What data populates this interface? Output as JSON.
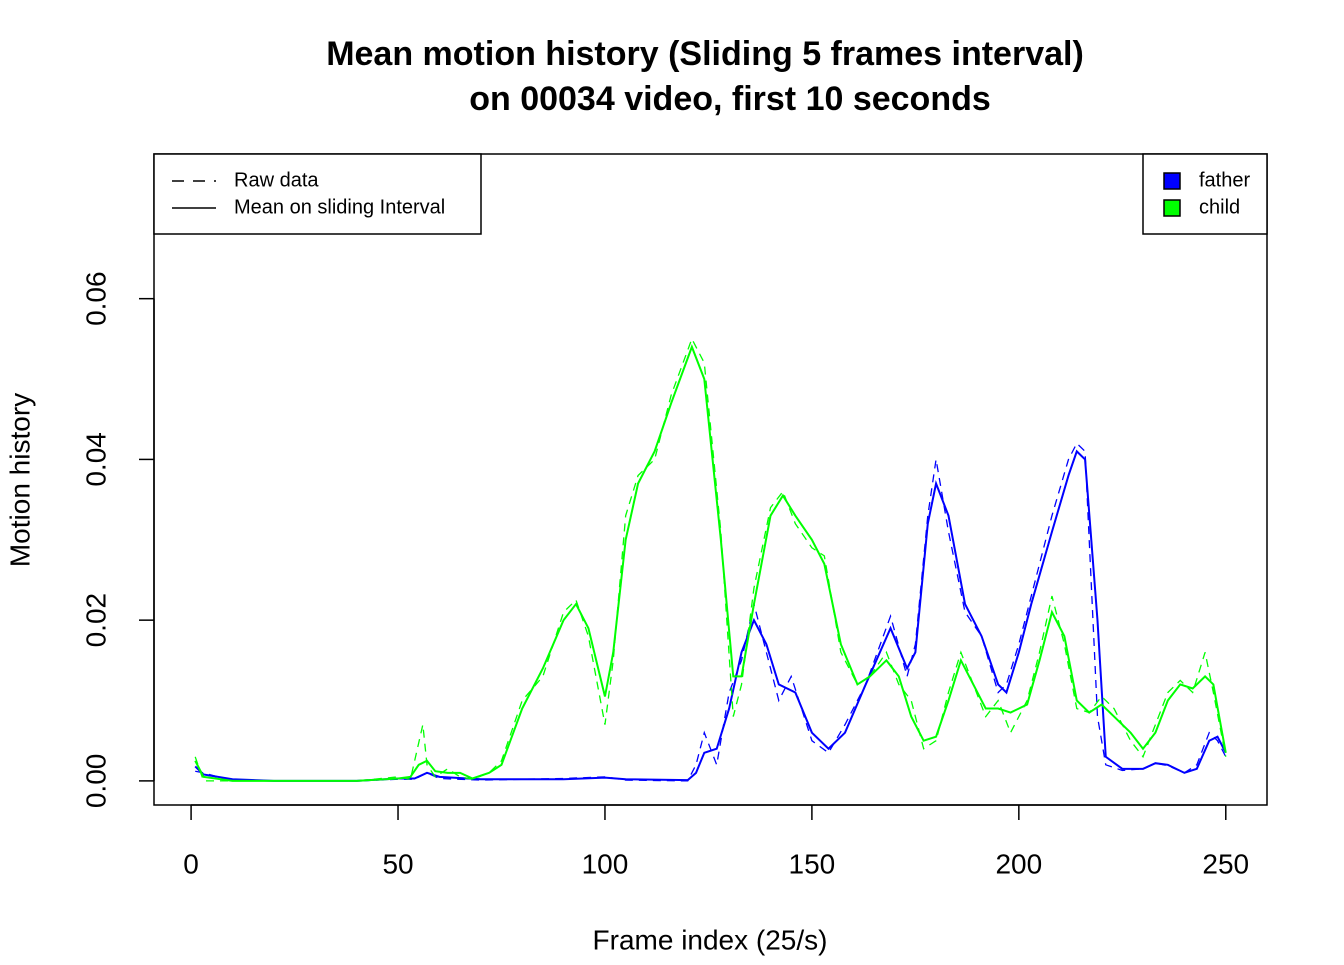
{
  "chart_data": {
    "type": "line",
    "title": "Mean motion history (Sliding 5 frames interval)",
    "subtitle": "on 00034 video, first 10 seconds",
    "x_label": "Frame index (25/s)",
    "y_label": "Motion history",
    "xlim": [
      -8.96,
      259.96
    ],
    "ylim": [
      -0.003,
      0.078
    ],
    "xticks": [
      0,
      50,
      100,
      150,
      200,
      250
    ],
    "yticks": [
      {
        "value": 0,
        "label": "0.00"
      },
      {
        "value": 0.02,
        "label": "0.02"
      },
      {
        "value": 0.04,
        "label": "0.04"
      },
      {
        "value": 0.06,
        "label": "0.06"
      }
    ],
    "style_legend": [
      {
        "label": "Raw data",
        "dash": "dashed"
      },
      {
        "label": "Mean on sliding Interval",
        "dash": "solid"
      }
    ],
    "series": [
      {
        "name": "father",
        "color": "#0000ff",
        "x": [
          1,
          3,
          10,
          20,
          40,
          50,
          54,
          57,
          60,
          70,
          90,
          100,
          105,
          120,
          122,
          124,
          127,
          130,
          133,
          136,
          139,
          142,
          146,
          150,
          154,
          158,
          163,
          169,
          173,
          175,
          178,
          180,
          183,
          187,
          191,
          195,
          197,
          200,
          203,
          208,
          212,
          214,
          216,
          219,
          221,
          225,
          230,
          233,
          236,
          240,
          243,
          246,
          248,
          250
        ],
        "values": [
          0.0018,
          0.0008,
          0.0002,
          0,
          0,
          0.0003,
          0.0003,
          0.001,
          0.0005,
          0.0002,
          0.0002,
          0.0004,
          0.0002,
          0.0001,
          0.001,
          0.0035,
          0.004,
          0.009,
          0.016,
          0.02,
          0.017,
          0.012,
          0.011,
          0.006,
          0.004,
          0.006,
          0.012,
          0.019,
          0.014,
          0.016,
          0.032,
          0.037,
          0.033,
          0.022,
          0.018,
          0.012,
          0.011,
          0.016,
          0.022,
          0.031,
          0.038,
          0.041,
          0.04,
          0.02,
          0.003,
          0.0015,
          0.0015,
          0.0022,
          0.002,
          0.001,
          0.0015,
          0.005,
          0.0055,
          0.0035
        ],
        "raw_x": [
          1,
          3,
          10,
          20,
          40,
          50,
          54,
          57,
          60,
          70,
          90,
          100,
          105,
          120,
          122,
          124,
          127,
          130,
          133,
          136,
          139,
          142,
          145,
          150,
          154,
          158,
          163,
          169,
          173,
          175,
          178,
          180,
          183,
          187,
          191,
          195,
          197,
          200,
          203,
          208,
          212,
          214,
          216,
          219,
          221,
          225,
          230,
          233,
          236,
          240,
          243,
          246,
          248,
          250
        ],
        "raw_values": [
          0.0012,
          0.001,
          0,
          0,
          0,
          0.0002,
          0.0002,
          0.001,
          0.0003,
          0.0001,
          0.0003,
          0.0005,
          0.0001,
          0,
          0.002,
          0.006,
          0.002,
          0.011,
          0.015,
          0.022,
          0.016,
          0.01,
          0.013,
          0.005,
          0.0035,
          0.007,
          0.012,
          0.0205,
          0.013,
          0.017,
          0.033,
          0.04,
          0.031,
          0.021,
          0.018,
          0.011,
          0.012,
          0.017,
          0.023,
          0.033,
          0.04,
          0.042,
          0.041,
          0.008,
          0.002,
          0.0013,
          0.0015,
          0.0022,
          0.0019,
          0.001,
          0.002,
          0.006,
          0.005,
          0.003
        ]
      },
      {
        "name": "child",
        "color": "#00ff00",
        "x": [
          1,
          3,
          10,
          40,
          50,
          53,
          55,
          57,
          59,
          62,
          65,
          68,
          72,
          75,
          80,
          85,
          90,
          93,
          96,
          100,
          102,
          105,
          108,
          112,
          116,
          121,
          124,
          128,
          131,
          133,
          136,
          140,
          143,
          146,
          150,
          153,
          157,
          161,
          164,
          168,
          171,
          174,
          177,
          180,
          183,
          186,
          189,
          192,
          195,
          198,
          202,
          205,
          208,
          211,
          214,
          217,
          220,
          223,
          227,
          230,
          233,
          236,
          239,
          242,
          245,
          247,
          250
        ],
        "values": [
          0.0025,
          0.0005,
          0,
          0,
          0.0003,
          0.0005,
          0.002,
          0.0025,
          0.0012,
          0.001,
          0.001,
          0.0003,
          0.001,
          0.002,
          0.009,
          0.014,
          0.02,
          0.022,
          0.019,
          0.0105,
          0.016,
          0.03,
          0.037,
          0.041,
          0.047,
          0.054,
          0.05,
          0.03,
          0.013,
          0.013,
          0.022,
          0.033,
          0.0355,
          0.033,
          0.03,
          0.027,
          0.017,
          0.012,
          0.013,
          0.015,
          0.013,
          0.008,
          0.005,
          0.0055,
          0.01,
          0.015,
          0.012,
          0.009,
          0.009,
          0.0085,
          0.0095,
          0.015,
          0.021,
          0.018,
          0.01,
          0.0085,
          0.0095,
          0.008,
          0.006,
          0.004,
          0.006,
          0.01,
          0.012,
          0.0115,
          0.013,
          0.012,
          0.0035
        ],
        "raw_x": [
          1,
          3,
          10,
          40,
          50,
          53,
          56,
          57,
          59,
          62,
          65,
          68,
          72,
          75,
          80,
          85,
          90,
          93,
          96,
          100,
          102,
          105,
          108,
          112,
          116,
          121,
          124,
          128,
          131,
          133,
          136,
          140,
          143,
          146,
          150,
          153,
          157,
          161,
          164,
          168,
          171,
          174,
          177,
          180,
          183,
          186,
          189,
          192,
          195,
          198,
          202,
          205,
          208,
          211,
          214,
          217,
          220,
          223,
          227,
          230,
          233,
          236,
          239,
          242,
          245,
          247,
          250
        ],
        "raw_values": [
          0.003,
          0,
          0,
          0,
          0.0005,
          0.0002,
          0.007,
          0.002,
          0.0005,
          0.0015,
          0.0005,
          0.0002,
          0.001,
          0.0025,
          0.01,
          0.013,
          0.021,
          0.0225,
          0.018,
          0.007,
          0.015,
          0.033,
          0.038,
          0.04,
          0.048,
          0.055,
          0.052,
          0.031,
          0.008,
          0.012,
          0.024,
          0.034,
          0.036,
          0.032,
          0.029,
          0.028,
          0.016,
          0.012,
          0.013,
          0.016,
          0.012,
          0.01,
          0.004,
          0.005,
          0.011,
          0.016,
          0.012,
          0.008,
          0.01,
          0.006,
          0.01,
          0.016,
          0.023,
          0.017,
          0.009,
          0.0085,
          0.0105,
          0.009,
          0.005,
          0.003,
          0.007,
          0.011,
          0.0125,
          0.011,
          0.016,
          0.011,
          0.003
        ]
      }
    ]
  }
}
